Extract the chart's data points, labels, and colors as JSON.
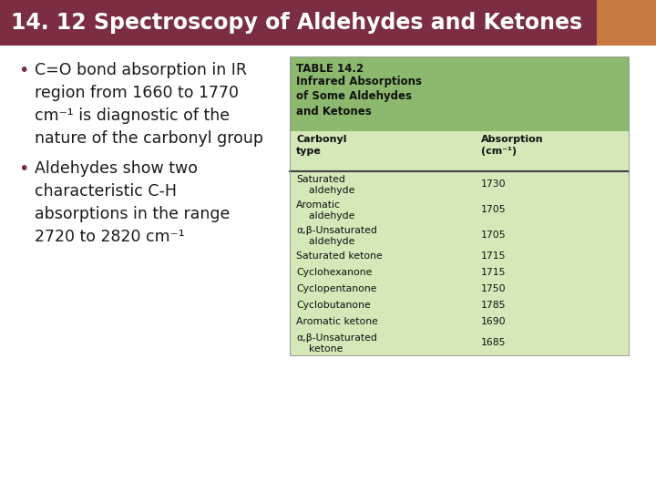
{
  "title": "14. 12 Spectroscopy of Aldehydes and Ketones",
  "title_bg": "#7B2D42",
  "title_color": "#FFFFFF",
  "title_fontsize": 17,
  "bg_color": "#FFFFFF",
  "bullet_color": "#7B2D42",
  "bullet_text_color": "#1A1A1A",
  "bullet_text_fontsize": 12.5,
  "bullet1_text": "C=O bond absorption in IR\nregion from 1660 to 1770\ncm⁻¹ is diagnostic of the\nnature of the carbonyl group",
  "bullet2_text": "Aldehydes show two\ncharacteristic C-H\nabsorptions in the range\n2720 to 2820 cm⁻¹",
  "table_header_bg": "#8DB96E",
  "table_body_bg": "#D4E8B8",
  "table_title": "TABLE 14.2",
  "table_subtitle": "Infrared Absorptions\nof Some Aldehydes\nand Ketones",
  "col1_header": "Carbonyl\ntype",
  "col2_header": "Absorption\n(cm⁻¹)",
  "table_rows": [
    [
      "Saturated\n    aldehyde",
      "1730"
    ],
    [
      "Aromatic\n    aldehyde",
      "1705"
    ],
    [
      "α,β-Unsaturated\n    aldehyde",
      "1705"
    ],
    [
      "Saturated ketone",
      "1715"
    ],
    [
      "Cyclohexanone",
      "1715"
    ],
    [
      "Cyclopentanone",
      "1750"
    ],
    [
      "Cyclobutanone",
      "1785"
    ],
    [
      "Aromatic ketone",
      "1690"
    ],
    [
      "α,β-Unsaturated\n    ketone",
      "1685"
    ]
  ],
  "flower_color": "#C87941",
  "fig_width": 7.2,
  "fig_height": 5.4,
  "dpi": 100
}
